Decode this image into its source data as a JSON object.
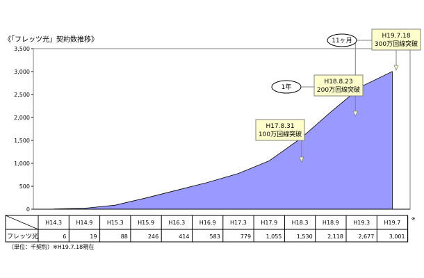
{
  "chart_data": {
    "type": "area",
    "title": "《「フレッツ光」契約数推移》",
    "x": [
      "H14.3",
      "H14.9",
      "H15.3",
      "H15.9",
      "H16.3",
      "H16.9",
      "H17.3",
      "H17.9",
      "H18.3",
      "H18.9",
      "H19.3",
      "H19.7"
    ],
    "series": [
      {
        "name": "フレッツ光",
        "values": [
          6,
          19,
          88,
          246,
          414,
          583,
          779,
          1055,
          1530,
          2118,
          2677,
          3001
        ]
      }
    ],
    "table_values": [
      "6",
      "19",
      "88",
      "246",
      "414",
      "583",
      "779",
      "1,055",
      "1,530",
      "2,118",
      "2,677",
      "3,001"
    ],
    "ylim": [
      0,
      3500
    ],
    "yticks": [
      0,
      500,
      1000,
      1500,
      2000,
      2500,
      3000,
      3500
    ],
    "ytick_labels": [
      "0",
      "500",
      "1,000",
      "1,500",
      "2,000",
      "2,500",
      "3,000",
      "3,500"
    ],
    "grid": false,
    "fill_color": "#9999ff",
    "callouts": [
      {
        "lines": [
          "H17.8.31",
          "100万回線突破"
        ],
        "at_x": 8.05,
        "at_y": 1000
      },
      {
        "lines": [
          "H18.8.23",
          "200万回線突破"
        ],
        "at_x": 9.8,
        "at_y": 2000
      },
      {
        "lines": [
          "H19.7.18",
          "300万回線突破"
        ],
        "at_x": 11.0,
        "at_y": 3000
      }
    ],
    "interval_labels": [
      "1年",
      "11ヶ月"
    ],
    "table_corner_mark": "※",
    "footnote": "（単位：千契約）※H19.7.18現在"
  }
}
